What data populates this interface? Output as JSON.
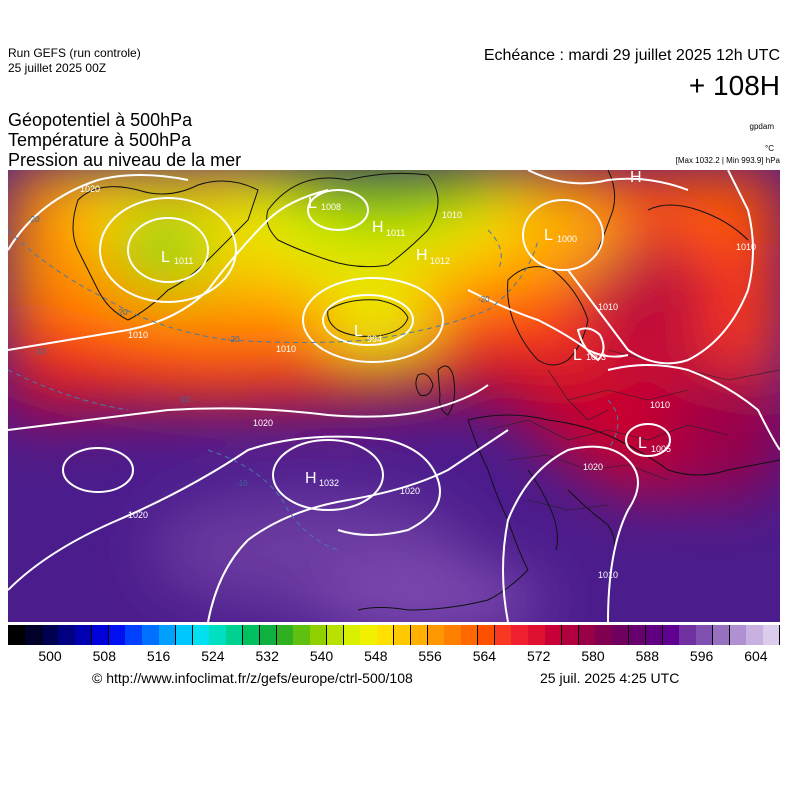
{
  "header": {
    "run_title": "Run GEFS (run controle)",
    "run_date": "25 juillet 2025 00Z",
    "valid_time": "Echéance : mardi 29 juillet 2025 12h UTC",
    "lead_time": "+ 108H"
  },
  "parameters": [
    "Géopotentiel à 500hPa",
    "Température à 500hPa",
    "Pression au niveau de la mer"
  ],
  "units": {
    "geopotential": "gpdam",
    "temperature": "°C",
    "pressure_range": "[Max 1032.2 | Min 993.9] hPa"
  },
  "map": {
    "systems": [
      {
        "type": "L",
        "value": "1008"
      },
      {
        "type": "L",
        "value": "1011"
      },
      {
        "type": "H",
        "value": "1011"
      },
      {
        "type": "H",
        "value": "1012"
      },
      {
        "type": "L",
        "value": "1000"
      },
      {
        "type": "L",
        "value": "994"
      },
      {
        "type": "L",
        "value": "1003"
      },
      {
        "type": "L",
        "value": "1005"
      },
      {
        "type": "H",
        "value": "1032"
      },
      {
        "type": "H",
        "value": ""
      }
    ],
    "isobar_labels": [
      "1020",
      "1010",
      "1020",
      "1010",
      "1010",
      "1020",
      "1020",
      "1010",
      "1010",
      "1010",
      "1010",
      "1020"
    ],
    "temperature_labels": [
      "-20",
      "-20",
      "-20",
      "-20",
      "-10",
      "-10",
      "-10"
    ]
  },
  "colorbar": {
    "ticks": [
      "500",
      "508",
      "516",
      "524",
      "532",
      "540",
      "548",
      "556",
      "564",
      "572",
      "580",
      "588",
      "596",
      "604"
    ],
    "colors": [
      "#000000",
      "#00002a",
      "#000050",
      "#000080",
      "#0000b0",
      "#0000d8",
      "#0010f0",
      "#0040ff",
      "#0070ff",
      "#00a0ff",
      "#00c8ff",
      "#00e0f0",
      "#00e0c0",
      "#00d090",
      "#00c060",
      "#10b040",
      "#30b020",
      "#60c010",
      "#90d000",
      "#b8e000",
      "#d8f000",
      "#f0f000",
      "#ffe000",
      "#ffc800",
      "#ffb000",
      "#ff9800",
      "#ff8000",
      "#ff6800",
      "#ff5000",
      "#f83820",
      "#f02030",
      "#e01030",
      "#c80038",
      "#b00040",
      "#980048",
      "#800050",
      "#700060",
      "#680070",
      "#600080",
      "#600090",
      "#7030a0",
      "#8050b0",
      "#9870c0",
      "#b090d0",
      "#c8b0e0",
      "#dcccec"
    ]
  },
  "footer": {
    "copyright": "© http://www.infoclimat.fr/z/gefs/europe/ctrl-500/108",
    "generated": "25 juil. 2025  4:25 UTC"
  }
}
